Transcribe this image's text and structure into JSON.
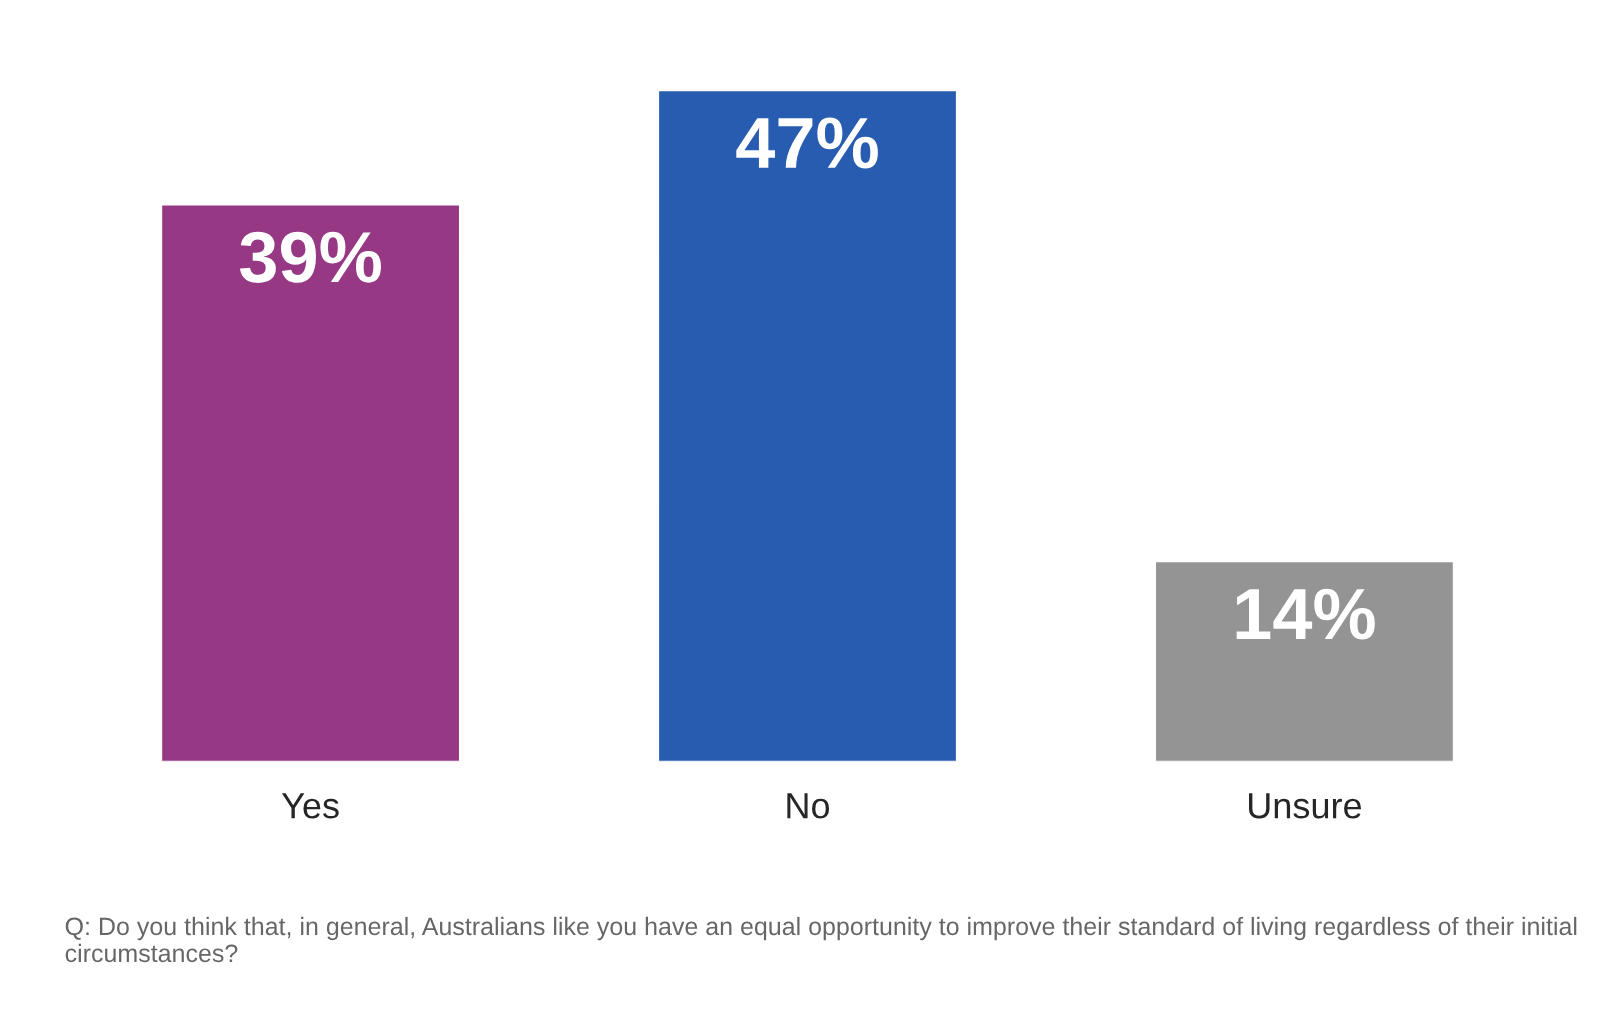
{
  "chart_data": {
    "type": "bar",
    "categories": [
      "Yes",
      "No",
      "Unsure"
    ],
    "values": [
      39,
      47,
      14
    ],
    "colors": [
      "#963884",
      "#275cb0",
      "#949494"
    ],
    "value_labels": [
      "39%",
      "47%",
      "14%"
    ],
    "annotations": [
      "Q: Do you think that, in general, Australians like you have an equal opportunity to improve their standard of living regardless of their initial circumstances?"
    ]
  }
}
